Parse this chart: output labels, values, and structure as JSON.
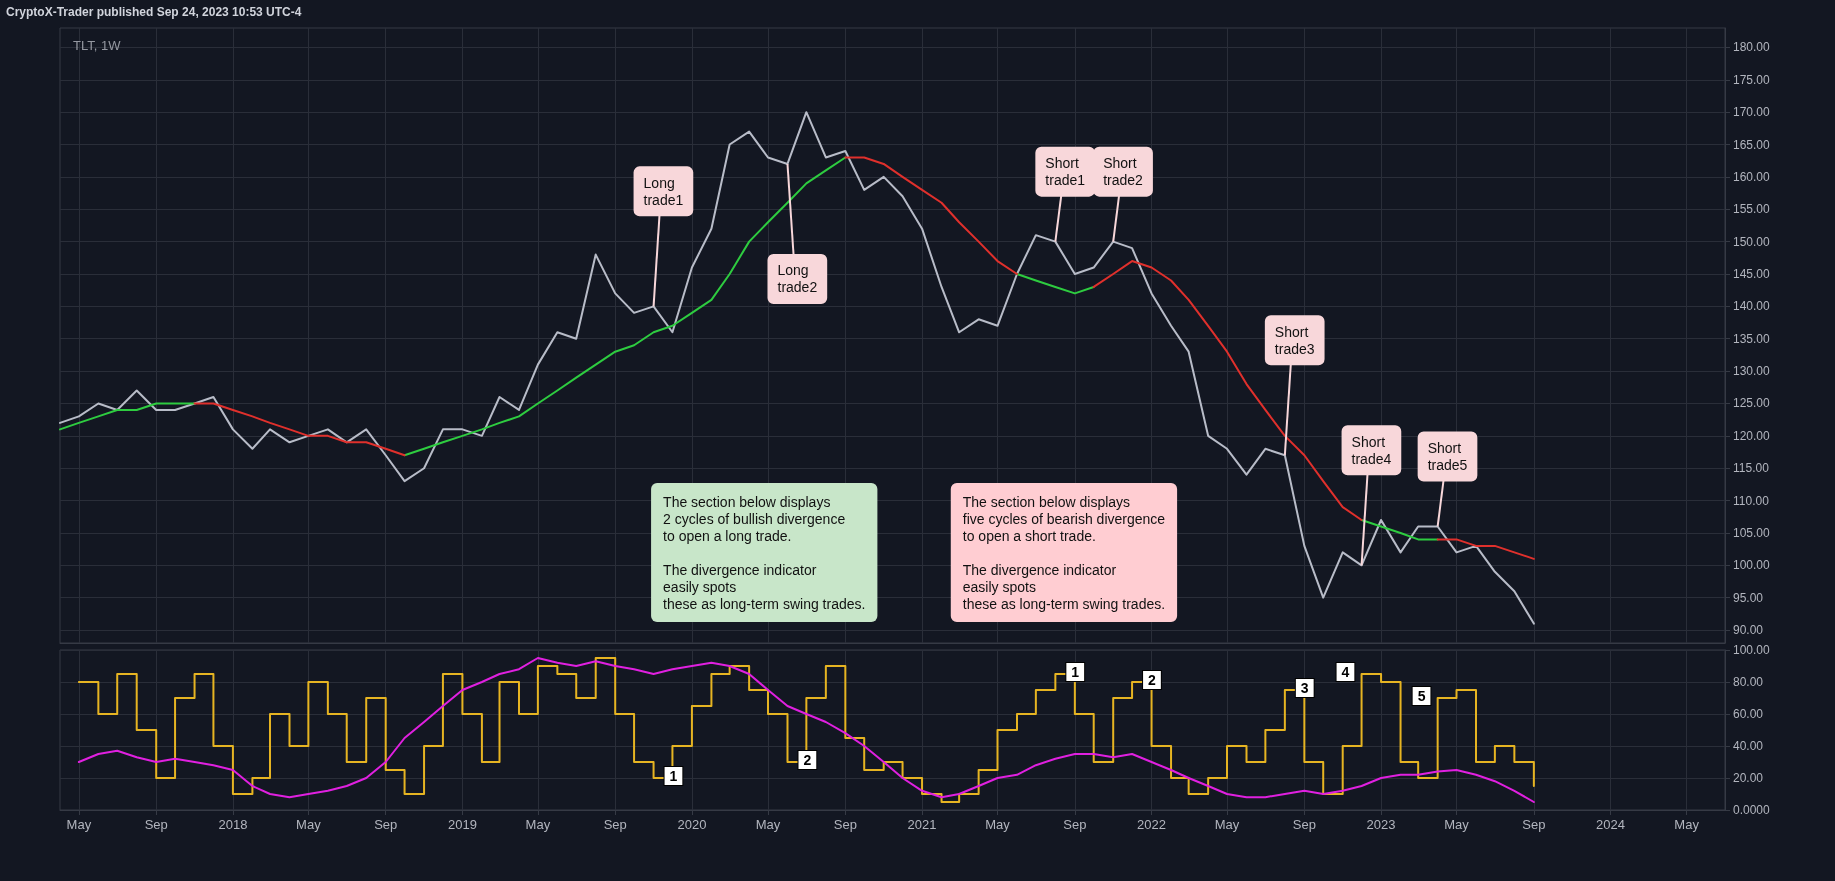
{
  "chart_data": [
    {
      "type": "line",
      "title": "TLT, 1W",
      "xlim": [
        "2017-04-01",
        "2024-07-01"
      ],
      "ylim": [
        88,
        183
      ],
      "xticks": [
        "2017-05-01",
        "2017-09-01",
        "2018-01-01",
        "2018-05-01",
        "2018-09-01",
        "2019-01-01",
        "2019-05-01",
        "2019-09-01",
        "2020-01-01",
        "2020-05-01",
        "2020-09-01",
        "2021-01-01",
        "2021-05-01",
        "2021-09-01",
        "2022-01-01",
        "2022-05-01",
        "2022-09-01",
        "2023-01-01",
        "2023-05-01",
        "2023-09-01",
        "2024-01-01",
        "2024-05-01"
      ],
      "yticks": [
        {
          "value": 90,
          "label": "90.00"
        },
        {
          "value": 95,
          "label": "95.00"
        },
        {
          "value": 100,
          "label": "100.00"
        },
        {
          "value": 105,
          "label": "105.00"
        },
        {
          "value": 110,
          "label": "110.00"
        },
        {
          "value": 115,
          "label": "115.00"
        },
        {
          "value": 120,
          "label": "120.00"
        },
        {
          "value": 125,
          "label": "125.00"
        },
        {
          "value": 130,
          "label": "130.00"
        },
        {
          "value": 135,
          "label": "135.00"
        },
        {
          "value": 140,
          "label": "140.00"
        },
        {
          "value": 145,
          "label": "145.00"
        },
        {
          "value": 150,
          "label": "150.00"
        },
        {
          "value": 155,
          "label": "155.00"
        },
        {
          "value": 160,
          "label": "160.00"
        },
        {
          "value": 165,
          "label": "165.00"
        },
        {
          "value": 170,
          "label": "170.00"
        },
        {
          "value": 175,
          "label": "175.00"
        },
        {
          "value": 180,
          "label": "180.00"
        }
      ],
      "tick_labels": "y",
      "grid": true,
      "marker": "none",
      "line_style": "solid",
      "x": [
        "2017-04",
        "2017-05",
        "2017-06",
        "2017-07",
        "2017-08",
        "2017-09",
        "2017-10",
        "2017-11",
        "2017-12",
        "2018-01",
        "2018-02",
        "2018-03",
        "2018-04",
        "2018-05",
        "2018-06",
        "2018-07",
        "2018-08",
        "2018-09",
        "2018-10",
        "2018-11",
        "2018-12",
        "2019-01",
        "2019-02",
        "2019-03",
        "2019-04",
        "2019-05",
        "2019-06",
        "2019-07",
        "2019-08",
        "2019-09",
        "2019-10",
        "2019-11",
        "2019-12",
        "2020-01",
        "2020-02",
        "2020-03",
        "2020-04",
        "2020-05",
        "2020-06",
        "2020-07",
        "2020-08",
        "2020-09",
        "2020-10",
        "2020-11",
        "2020-12",
        "2021-01",
        "2021-02",
        "2021-03",
        "2021-04",
        "2021-05",
        "2021-06",
        "2021-07",
        "2021-08",
        "2021-09",
        "2021-10",
        "2021-11",
        "2021-12",
        "2022-01",
        "2022-02",
        "2022-03",
        "2022-04",
        "2022-05",
        "2022-06",
        "2022-07",
        "2022-08",
        "2022-09",
        "2022-10",
        "2022-11",
        "2022-12",
        "2023-01",
        "2023-02",
        "2023-03",
        "2023-04",
        "2023-05",
        "2023-06",
        "2023-07",
        "2023-08",
        "2023-09"
      ],
      "series": [
        {
          "color": "#b8bcc8",
          "values": [
            122,
            123,
            125,
            124,
            127,
            124,
            124,
            125,
            126,
            121,
            118,
            121,
            119,
            120,
            121,
            119,
            121,
            117,
            113,
            115,
            121,
            121,
            120,
            126,
            124,
            131,
            136,
            135,
            148,
            142,
            139,
            140,
            136,
            146,
            152,
            165,
            167,
            163,
            162,
            170,
            163,
            164,
            158,
            160,
            157,
            152,
            143,
            136,
            138,
            137,
            145,
            151,
            150,
            145,
            146,
            150,
            149,
            142,
            137,
            133,
            120,
            118,
            114,
            118,
            117,
            103,
            95,
            102,
            100,
            107,
            102,
            106,
            106,
            102,
            103,
            99,
            96,
            91
          ]
        },
        {
          "color": "#2ecc40",
          "values": [
            121,
            122,
            123,
            124,
            124,
            125,
            125,
            125,
            null,
            null,
            null,
            null,
            null,
            null,
            null,
            null,
            null,
            null,
            117,
            118,
            119,
            120,
            121,
            122,
            123,
            125,
            127,
            129,
            131,
            133,
            134,
            136,
            137,
            139,
            141,
            145,
            150,
            153,
            156,
            159,
            161,
            163,
            null,
            null,
            null,
            null,
            null,
            null,
            null,
            null,
            145,
            144,
            143,
            142,
            143,
            null,
            null,
            null,
            null,
            null,
            null,
            null,
            null,
            null,
            null,
            null,
            null,
            null,
            107,
            106,
            105,
            104,
            104,
            null,
            null,
            null,
            null,
            null
          ]
        },
        {
          "color": "#e0302c",
          "values": [
            null,
            null,
            null,
            null,
            null,
            null,
            null,
            125,
            125,
            124,
            123,
            122,
            121,
            120,
            120,
            119,
            119,
            118,
            117,
            null,
            null,
            null,
            null,
            null,
            null,
            null,
            null,
            null,
            null,
            null,
            null,
            null,
            null,
            null,
            null,
            null,
            null,
            null,
            null,
            null,
            null,
            163,
            163,
            162,
            160,
            158,
            156,
            153,
            150,
            147,
            145,
            null,
            null,
            null,
            143,
            145,
            147,
            146,
            144,
            141,
            137,
            133,
            128,
            124,
            120,
            117,
            113,
            109,
            107,
            null,
            null,
            null,
            104,
            104,
            103,
            103,
            102,
            101
          ]
        }
      ],
      "annotations": [
        "CryptoX-Trader published Sep 24, 2023 10:53 UTC-4",
        "The section below displays\n2 cycles of bullish divergence\nto open a long trade.\n\nThe divergence indicator\neasily spots\nthese as long-term swing trades.",
        "The section below displays\nfive cycles of bearish divergence\nto open a short trade.\n\nThe divergence indicator\neasily spots\nthese as long-term swing trades.",
        {
          "text": "Long\ntrade1",
          "x": "2019-11",
          "y": 140
        },
        {
          "text": "Long\ntrade2",
          "x": "2020-06",
          "y": 162
        },
        {
          "text": "Short\ntrade1",
          "x": "2021-08",
          "y": 150
        },
        {
          "text": "Short\ntrade2",
          "x": "2021-11",
          "y": 150
        },
        {
          "text": "Short\ntrade3",
          "x": "2022-08",
          "y": 117
        },
        {
          "text": "Short\ntrade4",
          "x": "2022-12",
          "y": 100
        },
        {
          "text": "Short\ntrade5",
          "x": "2023-04",
          "y": 106
        }
      ]
    },
    {
      "type": "line",
      "xlim": [
        "2017-04-01",
        "2024-07-01"
      ],
      "ylim": [
        0,
        100
      ],
      "xticks": [
        {
          "value": "2017-05-01",
          "label": "May"
        },
        {
          "value": "2017-09-01",
          "label": "Sep"
        },
        {
          "value": "2018-01-01",
          "label": "2018"
        },
        {
          "value": "2018-05-01",
          "label": "May"
        },
        {
          "value": "2018-09-01",
          "label": "Sep"
        },
        {
          "value": "2019-01-01",
          "label": "2019"
        },
        {
          "value": "2019-05-01",
          "label": "May"
        },
        {
          "value": "2019-09-01",
          "label": "Sep"
        },
        {
          "value": "2020-01-01",
          "label": "2020"
        },
        {
          "value": "2020-05-01",
          "label": "May"
        },
        {
          "value": "2020-09-01",
          "label": "Sep"
        },
        {
          "value": "2021-01-01",
          "label": "2021"
        },
        {
          "value": "2021-05-01",
          "label": "May"
        },
        {
          "value": "2021-09-01",
          "label": "Sep"
        },
        {
          "value": "2022-01-01",
          "label": "2022"
        },
        {
          "value": "2022-05-01",
          "label": "May"
        },
        {
          "value": "2022-09-01",
          "label": "Sep"
        },
        {
          "value": "2023-01-01",
          "label": "2023"
        },
        {
          "value": "2023-05-01",
          "label": "May"
        },
        {
          "value": "2023-09-01",
          "label": "Sep"
        },
        {
          "value": "2024-01-01",
          "label": "2024"
        },
        {
          "value": "2024-05-01",
          "label": "May"
        }
      ],
      "yticks": [
        {
          "value": 0,
          "label": "0.0000"
        },
        {
          "value": 20,
          "label": "20.00"
        },
        {
          "value": 40,
          "label": "40.00"
        },
        {
          "value": 60,
          "label": "60.00"
        },
        {
          "value": 80,
          "label": "80.00"
        },
        {
          "value": 100,
          "label": "100.00"
        }
      ],
      "grid": true,
      "marker": "none",
      "line_style": "solid",
      "x": [
        "2017-05",
        "2017-06",
        "2017-07",
        "2017-08",
        "2017-09",
        "2017-10",
        "2017-11",
        "2017-12",
        "2018-01",
        "2018-02",
        "2018-03",
        "2018-04",
        "2018-05",
        "2018-06",
        "2018-07",
        "2018-08",
        "2018-09",
        "2018-10",
        "2018-11",
        "2018-12",
        "2019-01",
        "2019-02",
        "2019-03",
        "2019-04",
        "2019-05",
        "2019-06",
        "2019-07",
        "2019-08",
        "2019-09",
        "2019-10",
        "2019-11",
        "2019-12",
        "2020-01",
        "2020-02",
        "2020-03",
        "2020-04",
        "2020-05",
        "2020-06",
        "2020-07",
        "2020-08",
        "2020-09",
        "2020-10",
        "2020-11",
        "2020-12",
        "2021-01",
        "2021-02",
        "2021-03",
        "2021-04",
        "2021-05",
        "2021-06",
        "2021-07",
        "2021-08",
        "2021-09",
        "2021-10",
        "2021-11",
        "2021-12",
        "2022-01",
        "2022-02",
        "2022-03",
        "2022-04",
        "2022-05",
        "2022-06",
        "2022-07",
        "2022-08",
        "2022-09",
        "2022-10",
        "2022-11",
        "2022-12",
        "2023-01",
        "2023-02",
        "2023-03",
        "2023-04",
        "2023-05",
        "2023-06",
        "2023-07",
        "2023-08",
        "2023-09"
      ],
      "series": [
        {
          "color": "#e6b422",
          "type": "step",
          "values": [
            80,
            60,
            85,
            50,
            20,
            70,
            85,
            40,
            10,
            20,
            60,
            40,
            80,
            60,
            30,
            70,
            25,
            10,
            40,
            85,
            60,
            30,
            80,
            60,
            90,
            85,
            70,
            95,
            60,
            30,
            20,
            40,
            65,
            85,
            90,
            75,
            60,
            30,
            70,
            90,
            45,
            25,
            30,
            20,
            10,
            5,
            10,
            25,
            50,
            60,
            75,
            85,
            60,
            30,
            70,
            80,
            40,
            20,
            10,
            20,
            40,
            30,
            50,
            75,
            30,
            10,
            40,
            85,
            80,
            30,
            20,
            70,
            75,
            30,
            40,
            30,
            15
          ]
        },
        {
          "color": "#e020e0",
          "values": [
            30,
            35,
            37,
            33,
            30,
            32,
            30,
            28,
            25,
            15,
            10,
            8,
            10,
            12,
            15,
            20,
            30,
            45,
            55,
            65,
            75,
            80,
            85,
            88,
            95,
            92,
            90,
            93,
            90,
            88,
            85,
            88,
            90,
            92,
            90,
            85,
            75,
            65,
            60,
            55,
            48,
            40,
            30,
            20,
            12,
            8,
            10,
            15,
            20,
            22,
            28,
            32,
            35,
            35,
            33,
            35,
            30,
            25,
            20,
            15,
            10,
            8,
            8,
            10,
            12,
            10,
            12,
            15,
            20,
            22,
            22,
            24,
            25,
            22,
            18,
            12,
            5
          ]
        }
      ],
      "annotations": [
        {
          "text": "1",
          "x": "2019-11",
          "y": 20
        },
        {
          "text": "2",
          "x": "2020-06",
          "y": 30
        },
        {
          "text": "1",
          "x": "2021-08",
          "y": 85
        },
        {
          "text": "2",
          "x": "2021-12",
          "y": 80
        },
        {
          "text": "3",
          "x": "2022-08",
          "y": 75
        },
        {
          "text": "4",
          "x": "2022-12",
          "y": 85
        },
        {
          "text": "5",
          "x": "2023-04",
          "y": 70
        }
      ]
    }
  ]
}
